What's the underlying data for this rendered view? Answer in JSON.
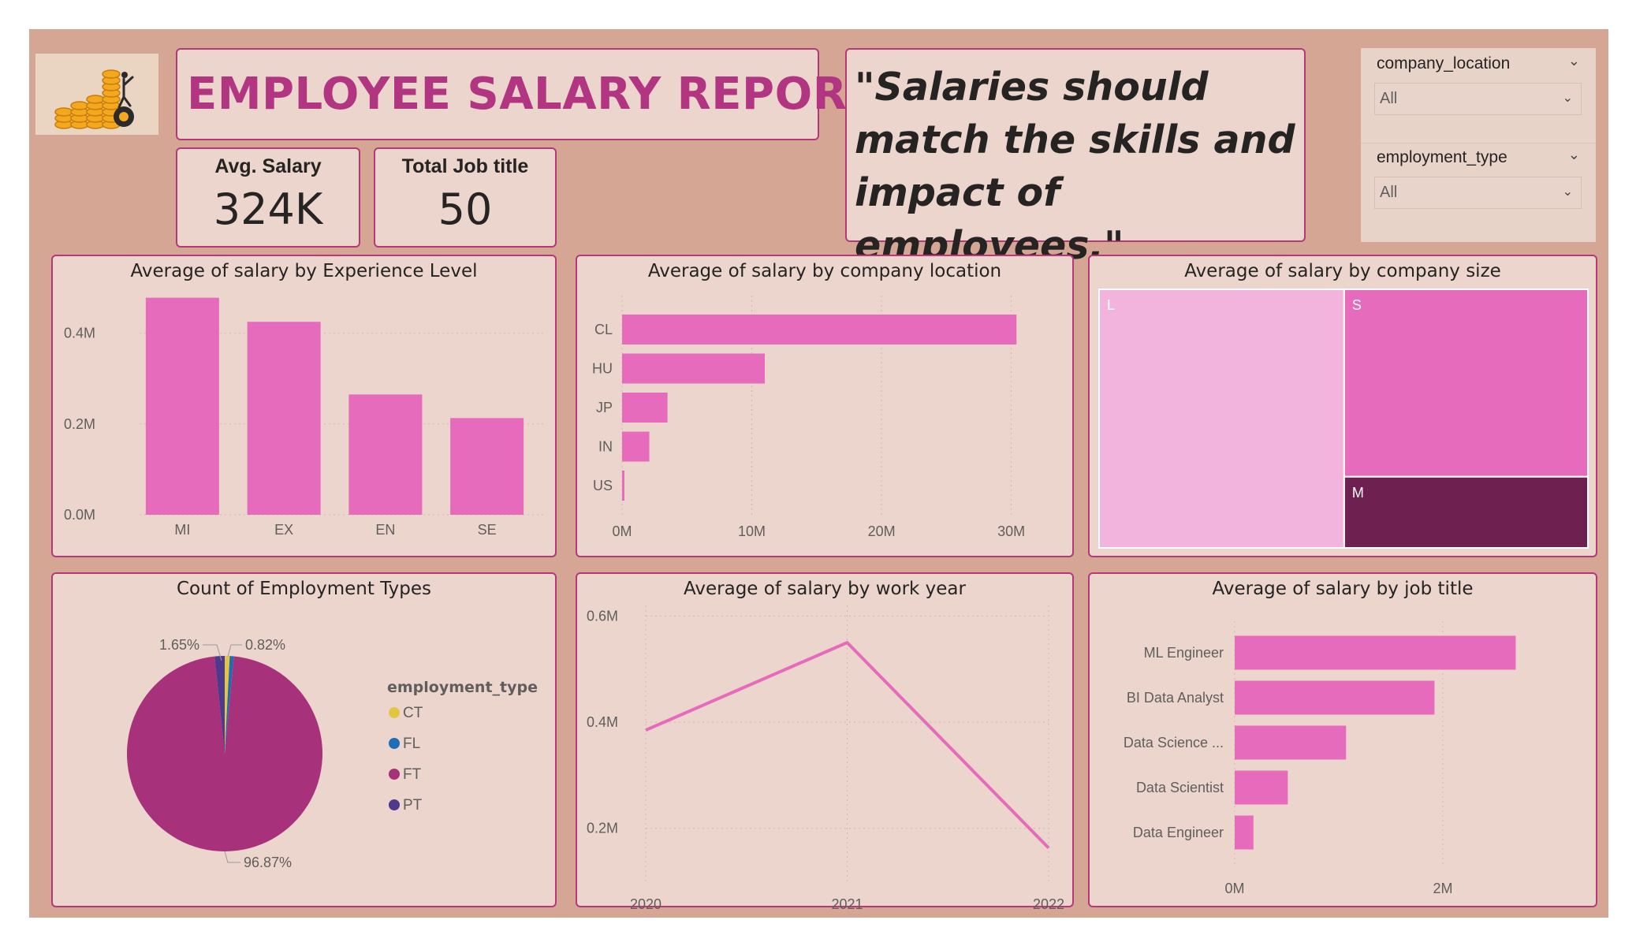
{
  "header": {
    "title": "EMPLOYEE SALARY REPORT",
    "quote": "\"Salaries should match the skills and impact of employees.\""
  },
  "kpis": [
    {
      "label": "Avg. Salary",
      "value": "324K"
    },
    {
      "label": "Total Job title",
      "value": "50"
    }
  ],
  "slicers": [
    {
      "field": "company_location",
      "value": "All"
    },
    {
      "field": "employment_type",
      "value": "All"
    }
  ],
  "colors": {
    "background": "#d6a694",
    "card": "#ebd5cc",
    "card_border": "#b5397a",
    "title": "#b23581",
    "bar": "#e66bbd",
    "treemap_l": "#f2b4dc",
    "treemap_s": "#e66bbd",
    "treemap_m": "#6e2050",
    "pie_ft": "#a8317b",
    "pie_ct": "#e3c640",
    "pie_fl": "#1f6db5",
    "pie_pt": "#4e3a8c"
  },
  "chart_data": [
    {
      "id": "exp",
      "type": "bar",
      "title": "Average of salary by Experience Level",
      "categories": [
        "MI",
        "EX",
        "EN",
        "SE"
      ],
      "values": [
        478000,
        425000,
        265000,
        213000
      ],
      "ylim": [
        0,
        500000
      ],
      "yticks": [
        {
          "v": 0,
          "label": "0.0M"
        },
        {
          "v": 200000,
          "label": "0.2M"
        },
        {
          "v": 400000,
          "label": "0.4M"
        }
      ],
      "grid": true
    },
    {
      "id": "loc",
      "type": "bar",
      "orientation": "horizontal",
      "title": "Average of salary by company location",
      "categories": [
        "CL",
        "HU",
        "JP",
        "IN",
        "US"
      ],
      "values": [
        30400000,
        11000000,
        3500000,
        2100000,
        180000
      ],
      "xlim": [
        0,
        33000000
      ],
      "xticks": [
        {
          "v": 0,
          "label": "0M"
        },
        {
          "v": 10000000,
          "label": "10M"
        },
        {
          "v": 20000000,
          "label": "20M"
        },
        {
          "v": 30000000,
          "label": "30M"
        }
      ],
      "grid": true
    },
    {
      "id": "size",
      "type": "treemap",
      "title": "Average of salary by company size",
      "categories": [
        "L",
        "S",
        "M"
      ],
      "values": [
        530000,
        382000,
        145000
      ]
    },
    {
      "id": "emp",
      "type": "pie",
      "title": "Count of Employment Types",
      "legend_title": "employment_type",
      "legend_position": "right",
      "slices": [
        {
          "label": "CT",
          "value": 0.82,
          "text": "0.82%"
        },
        {
          "label": "FL",
          "value": 0.66,
          "text": ""
        },
        {
          "label": "FT",
          "value": 96.87,
          "text": "96.87%"
        },
        {
          "label": "PT",
          "value": 1.65,
          "text": "1.65%"
        }
      ]
    },
    {
      "id": "year",
      "type": "line",
      "title": "Average of salary by work year",
      "categories": [
        "2020",
        "2021",
        "2022"
      ],
      "values": [
        385000,
        550000,
        163000
      ],
      "ylim": [
        100000,
        620000
      ],
      "yticks": [
        {
          "v": 200000,
          "label": "0.2M"
        },
        {
          "v": 400000,
          "label": "0.4M"
        },
        {
          "v": 600000,
          "label": "0.6M"
        }
      ],
      "grid": true
    },
    {
      "id": "job",
      "type": "bar",
      "orientation": "horizontal",
      "title": "Average of salary by job title",
      "categories": [
        "ML Engineer",
        "BI Data Analyst",
        "Data Science ...",
        "Data Scientist",
        "Data Engineer"
      ],
      "values": [
        2700000,
        1920000,
        1070000,
        510000,
        180000
      ],
      "xlim": [
        0,
        3000000
      ],
      "xticks": [
        {
          "v": 0,
          "label": "0M"
        },
        {
          "v": 2000000,
          "label": "2M"
        }
      ],
      "grid": true
    }
  ]
}
